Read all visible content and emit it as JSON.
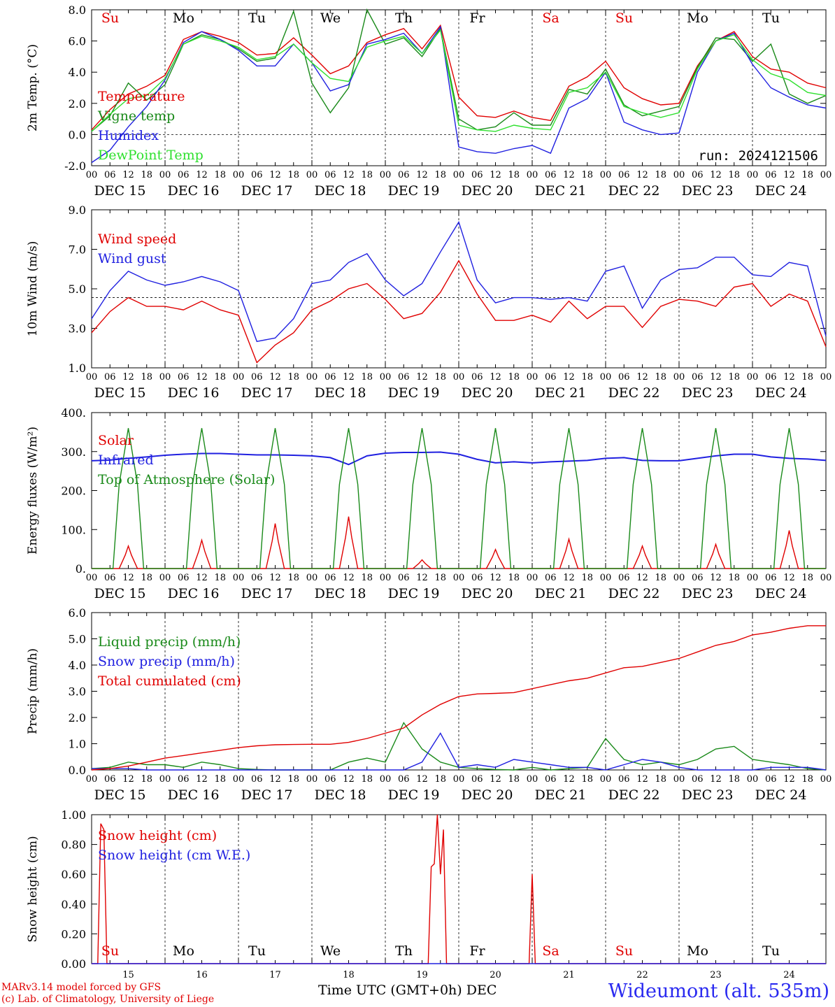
{
  "chart_data": [
    {
      "type": "line",
      "ylabel": "2m Temp. (°C)",
      "ylim": [
        -2,
        8
      ],
      "yticks": [
        "-2.0",
        "0.0",
        "2.0",
        "4.0",
        "6.0",
        "8.0"
      ],
      "zero_line": 0,
      "legend": [
        "Temperature",
        "Vigne temp",
        "Humidex",
        "DewPoint Temp"
      ],
      "annotation": "run: 2024121506",
      "series": [
        {
          "name": "Temperature",
          "color": "#e00000",
          "x": [
            0,
            6,
            12,
            18,
            24,
            30,
            36,
            42,
            48,
            54,
            60,
            66,
            72,
            78,
            84,
            90,
            96,
            102,
            108,
            114,
            120,
            126,
            132,
            138,
            144,
            150,
            156,
            162,
            168,
            174,
            180,
            186,
            192,
            198,
            204,
            210,
            216,
            222,
            228,
            234,
            240
          ],
          "values": [
            0.3,
            1.6,
            2.6,
            3.1,
            3.8,
            6.1,
            6.6,
            6.3,
            5.9,
            5.1,
            5.2,
            6.2,
            5.1,
            3.9,
            4.4,
            5.9,
            6.4,
            6.8,
            5.5,
            7.0,
            2.4,
            1.2,
            1.1,
            1.5,
            1.1,
            0.9,
            3.1,
            3.7,
            4.7,
            3.0,
            2.3,
            1.9,
            2.0,
            4.4,
            6.0,
            6.6,
            5.0,
            4.2,
            4.0,
            3.3,
            3.0
          ]
        },
        {
          "name": "Vigne temp",
          "color": "#1a8a1a",
          "x": [
            0,
            6,
            12,
            18,
            24,
            30,
            36,
            42,
            48,
            54,
            60,
            66,
            72,
            78,
            84,
            90,
            96,
            102,
            108,
            114,
            120,
            126,
            132,
            138,
            144,
            150,
            156,
            162,
            168,
            174,
            180,
            186,
            192,
            198,
            204,
            210,
            216,
            222,
            228,
            234,
            240
          ],
          "values": [
            0.2,
            1.2,
            3.3,
            2.2,
            3.2,
            5.8,
            6.4,
            6.1,
            5.5,
            4.7,
            4.9,
            7.9,
            3.3,
            1.4,
            3.0,
            8.0,
            5.8,
            6.2,
            5.0,
            6.8,
            1.0,
            0.3,
            0.5,
            1.4,
            0.6,
            0.6,
            2.9,
            2.6,
            4.2,
            1.9,
            1.2,
            1.5,
            1.8,
            4.3,
            6.2,
            6.1,
            4.7,
            5.8,
            2.6,
            2.0,
            2.5
          ]
        },
        {
          "name": "Humidex",
          "color": "#2020e0",
          "x": [
            0,
            6,
            12,
            18,
            24,
            30,
            36,
            42,
            48,
            54,
            60,
            66,
            72,
            78,
            84,
            90,
            96,
            102,
            108,
            114,
            120,
            126,
            132,
            138,
            144,
            150,
            156,
            162,
            168,
            174,
            180,
            186,
            192,
            198,
            204,
            210,
            216,
            222,
            228,
            234,
            240
          ],
          "values": [
            -1.8,
            -1.0,
            0.5,
            1.8,
            3.5,
            5.9,
            6.6,
            6.1,
            5.4,
            4.4,
            4.4,
            5.8,
            4.6,
            2.8,
            3.2,
            5.8,
            6.1,
            6.5,
            5.2,
            6.9,
            -0.8,
            -1.1,
            -1.2,
            -0.9,
            -0.7,
            -1.2,
            1.7,
            2.3,
            4.0,
            0.8,
            0.3,
            0.0,
            0.1,
            4.0,
            6.0,
            6.5,
            4.5,
            3.0,
            2.4,
            1.9,
            1.7
          ]
        },
        {
          "name": "DewPoint Temp",
          "color": "#2ee02e",
          "x": [
            0,
            6,
            12,
            18,
            24,
            30,
            36,
            42,
            48,
            54,
            60,
            66,
            72,
            78,
            84,
            90,
            96,
            102,
            108,
            114,
            120,
            126,
            132,
            138,
            144,
            150,
            156,
            162,
            168,
            174,
            180,
            186,
            192,
            198,
            204,
            210,
            216,
            222,
            228,
            234,
            240
          ],
          "values": [
            0.2,
            1.3,
            2.3,
            2.5,
            3.6,
            5.8,
            6.3,
            6.0,
            5.6,
            4.8,
            5.0,
            5.8,
            4.6,
            3.6,
            3.4,
            5.6,
            6.0,
            6.3,
            5.2,
            6.7,
            0.6,
            0.3,
            0.2,
            0.6,
            0.4,
            0.3,
            2.7,
            3.0,
            4.0,
            1.8,
            1.4,
            1.1,
            1.4,
            4.2,
            6.0,
            6.4,
            4.8,
            3.9,
            3.5,
            2.7,
            2.5
          ]
        }
      ]
    },
    {
      "type": "line",
      "ylabel": "10m Wind (m/s)",
      "ylim": [
        1,
        10
      ],
      "yticks": [
        "1.0",
        "3.0",
        "5.0",
        "7.0",
        "9.0"
      ],
      "zero_line": 5,
      "legend": [
        "Wind speed",
        "Wind gust"
      ],
      "series": [
        {
          "name": "Wind speed",
          "color": "#e00000",
          "x": [
            0,
            6,
            12,
            18,
            24,
            30,
            36,
            42,
            48,
            54,
            60,
            66,
            72,
            78,
            84,
            90,
            96,
            102,
            108,
            114,
            120,
            126,
            132,
            138,
            144,
            150,
            156,
            162,
            168,
            174,
            180,
            186,
            192,
            198,
            204,
            210,
            216,
            222,
            228,
            234,
            240
          ],
          "values": [
            3.0,
            4.2,
            5.0,
            4.5,
            4.5,
            4.3,
            4.8,
            4.3,
            4.0,
            1.3,
            2.3,
            3.0,
            4.3,
            4.8,
            5.5,
            5.8,
            4.9,
            3.8,
            4.1,
            5.3,
            7.1,
            5.2,
            3.7,
            3.7,
            4.0,
            3.6,
            4.8,
            3.8,
            4.5,
            4.5,
            3.3,
            4.5,
            4.9,
            4.8,
            4.5,
            5.6,
            5.8,
            4.5,
            5.2,
            4.8,
            2.2
          ]
        },
        {
          "name": "Wind gust",
          "color": "#2020e0",
          "x": [
            0,
            6,
            12,
            18,
            24,
            30,
            36,
            42,
            48,
            54,
            60,
            66,
            72,
            78,
            84,
            90,
            96,
            102,
            108,
            114,
            120,
            126,
            132,
            138,
            144,
            150,
            156,
            162,
            168,
            174,
            180,
            186,
            192,
            198,
            204,
            210,
            216,
            222,
            228,
            234,
            240
          ],
          "values": [
            3.8,
            5.4,
            6.5,
            6.0,
            5.7,
            5.9,
            6.2,
            5.9,
            5.4,
            2.5,
            2.7,
            3.8,
            5.8,
            6.0,
            7.0,
            7.5,
            6.0,
            5.1,
            5.8,
            7.6,
            9.3,
            6.0,
            4.7,
            5.0,
            5.0,
            4.9,
            5.0,
            4.8,
            6.5,
            6.8,
            4.4,
            6.0,
            6.6,
            6.7,
            7.3,
            7.3,
            6.3,
            6.2,
            7.0,
            6.8,
            2.8
          ]
        }
      ]
    },
    {
      "type": "line",
      "ylabel": "Energy fluxes (W/m²)",
      "ylim": [
        0,
        450
      ],
      "yticks": [
        "0.",
        "100.",
        "200.",
        "300.",
        "400."
      ],
      "legend": [
        "Solar",
        "Infrared",
        "Top of Atmosphere (Solar)"
      ],
      "series": [
        {
          "name": "Solar",
          "color": "#e00000",
          "peaks": [
            65,
            82,
            130,
            150,
            25,
            55,
            85,
            65,
            70,
            110
          ]
        },
        {
          "name": "Infrared",
          "color": "#2020e0",
          "x": [
            0,
            6,
            12,
            18,
            24,
            30,
            36,
            42,
            48,
            54,
            60,
            66,
            72,
            78,
            84,
            90,
            96,
            102,
            108,
            114,
            120,
            126,
            132,
            138,
            144,
            150,
            156,
            162,
            168,
            174,
            180,
            186,
            192,
            198,
            204,
            210,
            216,
            222,
            228,
            234,
            240
          ],
          "values": [
            311,
            313,
            318,
            322,
            327,
            330,
            332,
            332,
            330,
            328,
            328,
            327,
            325,
            320,
            300,
            325,
            333,
            335,
            335,
            336,
            330,
            315,
            305,
            308,
            305,
            308,
            310,
            312,
            318,
            320,
            312,
            311,
            311,
            318,
            325,
            330,
            330,
            322,
            318,
            316,
            312
          ]
        },
        {
          "name": "Top of Atmosphere (Solar)",
          "color": "#1a8a1a",
          "peaks": [
            405,
            405,
            405,
            405,
            405,
            405,
            405,
            405,
            405,
            405
          ]
        }
      ]
    },
    {
      "type": "line",
      "ylabel": "Precip (mm/h)",
      "ylim": [
        0,
        6
      ],
      "yticks": [
        "0.0",
        "1.0",
        "2.0",
        "3.0",
        "4.0",
        "5.0",
        "6.0"
      ],
      "legend": [
        "Liquid precip (mm/h)",
        "Snow precip (mm/h)",
        "Total cumulated (cm)"
      ],
      "series": [
        {
          "name": "Liquid precip (mm/h)",
          "color": "#1a8a1a",
          "x": [
            0,
            6,
            12,
            18,
            24,
            30,
            36,
            42,
            48,
            54,
            60,
            66,
            72,
            78,
            84,
            90,
            96,
            102,
            108,
            114,
            120,
            126,
            132,
            138,
            144,
            150,
            156,
            162,
            168,
            174,
            180,
            186,
            192,
            198,
            204,
            210,
            216,
            222,
            228,
            234,
            240
          ],
          "values": [
            0.05,
            0.1,
            0.3,
            0.2,
            0.2,
            0.1,
            0.3,
            0.2,
            0.05,
            0.02,
            0.0,
            0.0,
            0.0,
            0.0,
            0.3,
            0.45,
            0.3,
            1.8,
            0.8,
            0.3,
            0.1,
            0.05,
            0.02,
            0.0,
            0.1,
            0.0,
            0.05,
            0.1,
            1.2,
            0.4,
            0.2,
            0.3,
            0.2,
            0.4,
            0.8,
            0.9,
            0.4,
            0.3,
            0.2,
            0.05,
            0.0
          ]
        },
        {
          "name": "Snow precip (mm/h)",
          "color": "#2020e0",
          "x": [
            0,
            6,
            12,
            18,
            24,
            30,
            36,
            42,
            48,
            54,
            60,
            66,
            72,
            78,
            84,
            90,
            96,
            102,
            108,
            114,
            120,
            126,
            132,
            138,
            144,
            150,
            156,
            162,
            168,
            174,
            180,
            186,
            192,
            198,
            204,
            210,
            216,
            222,
            228,
            234,
            240
          ],
          "values": [
            0.05,
            0.05,
            0.05,
            0.0,
            0.0,
            0.0,
            0.0,
            0.0,
            0.0,
            0.0,
            0.0,
            0.0,
            0.0,
            0.0,
            0.0,
            0.0,
            0.0,
            0.0,
            0.3,
            1.4,
            0.1,
            0.2,
            0.1,
            0.4,
            0.3,
            0.2,
            0.1,
            0.1,
            0.0,
            0.2,
            0.4,
            0.3,
            0.1,
            0.0,
            0.0,
            0.0,
            0.0,
            0.1,
            0.1,
            0.1,
            0.0
          ]
        },
        {
          "name": "Total cumulated (cm)",
          "color": "#e00000",
          "x": [
            0,
            6,
            12,
            18,
            24,
            30,
            36,
            42,
            48,
            54,
            60,
            66,
            72,
            78,
            84,
            90,
            96,
            102,
            108,
            114,
            120,
            126,
            132,
            138,
            144,
            150,
            156,
            162,
            168,
            174,
            180,
            186,
            192,
            198,
            204,
            210,
            216,
            222,
            228,
            234,
            240
          ],
          "values": [
            0.0,
            0.05,
            0.15,
            0.3,
            0.45,
            0.55,
            0.65,
            0.75,
            0.85,
            0.92,
            0.96,
            0.97,
            0.98,
            0.98,
            1.05,
            1.2,
            1.4,
            1.6,
            2.1,
            2.5,
            2.8,
            2.9,
            2.92,
            2.95,
            3.1,
            3.25,
            3.4,
            3.5,
            3.7,
            3.9,
            3.95,
            4.1,
            4.25,
            4.5,
            4.75,
            4.9,
            5.15,
            5.25,
            5.4,
            5.5,
            5.5
          ]
        }
      ]
    },
    {
      "type": "line",
      "ylabel": "Snow height (cm)",
      "ylim": [
        0,
        1
      ],
      "yticks": [
        "0.00",
        "0.20",
        "0.40",
        "0.60",
        "0.80",
        "1.00"
      ],
      "legend": [
        "Snow height (cm)",
        "Snow height (cm W.E.)"
      ],
      "series": [
        {
          "name": "Snow height (cm)",
          "color": "#e00000",
          "x": [
            0,
            2,
            3,
            4,
            5,
            6,
            110,
            111,
            112,
            113,
            114,
            115,
            116,
            117,
            118,
            143,
            144,
            145,
            146,
            240
          ],
          "values": [
            0,
            0,
            0.94,
            0.9,
            0.0,
            0,
            0,
            0.65,
            0.67,
            1.0,
            0.6,
            0.9,
            0.0,
            0,
            0,
            0,
            0.6,
            0.0,
            0,
            0
          ]
        },
        {
          "name": "Snow height (cm W.E.)",
          "color": "#2020e0",
          "x": [
            0,
            240
          ],
          "values": [
            0,
            0
          ]
        }
      ]
    }
  ],
  "x_axis": {
    "hour_ticks": [
      "00",
      "06",
      "12",
      "18"
    ],
    "day_labels": [
      "DEC 15",
      "DEC 16",
      "DEC 17",
      "DEC 18",
      "DEC 19",
      "DEC 20",
      "DEC 21",
      "DEC 22",
      "DEC 23",
      "DEC 24"
    ],
    "weekdays": [
      "Su",
      "Mo",
      "Tu",
      "We",
      "Th",
      "Fr",
      "Sa",
      "Su",
      "Mo",
      "Tu"
    ],
    "weekend_color": "#e00000",
    "weekday_color": "#000000",
    "bottom_day_numbers": [
      "15",
      "16",
      "17",
      "18",
      "19",
      "20",
      "21",
      "22",
      "23",
      "24"
    ],
    "title": "Time UTC (GMT+0h)",
    "month": "DEC"
  },
  "footer": {
    "model": "MARv3.14 model forced by GFS",
    "lab": "(c) Lab. of Climatology, University of Liege",
    "station": "Wideumont (alt. 535m)"
  }
}
